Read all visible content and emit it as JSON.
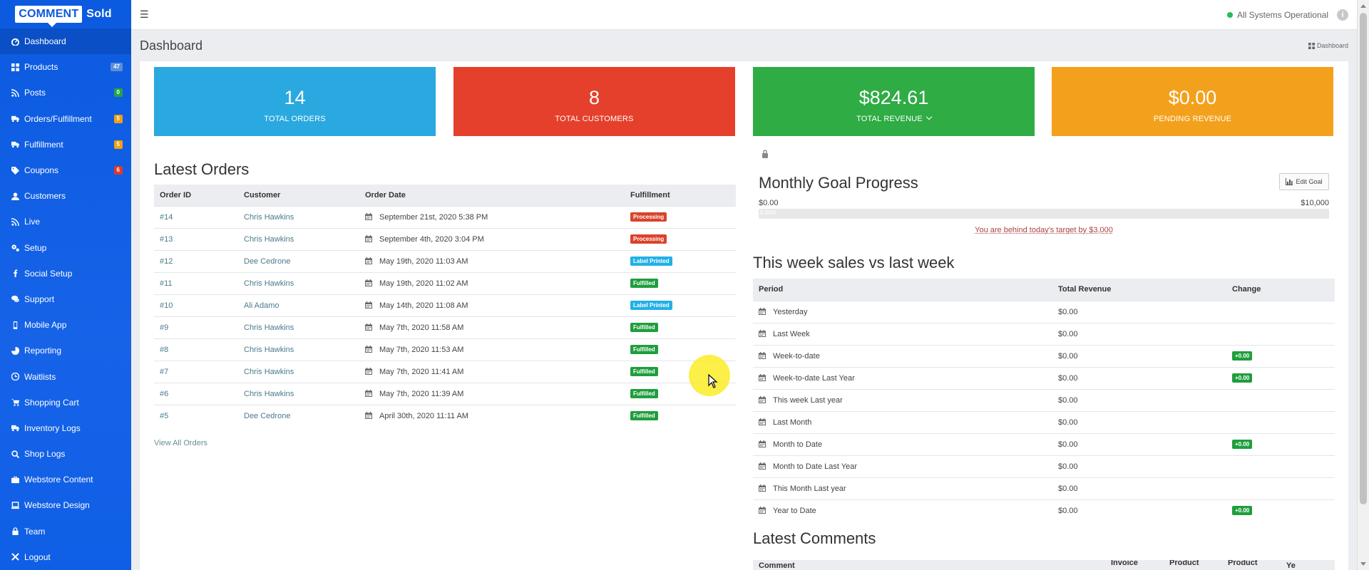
{
  "brand": {
    "logo_part1": "COMMENT",
    "logo_part2": "Sold",
    "primary": "#0b5ae0"
  },
  "sidebar": {
    "items": [
      {
        "label": "Dashboard",
        "icon": "dashboard-icon",
        "badge": null,
        "active": true
      },
      {
        "label": "Products",
        "icon": "grid-icon",
        "badge": "47",
        "badge_color": "#5b8fd9"
      },
      {
        "label": "Posts",
        "icon": "rss-icon",
        "badge": "0",
        "badge_color": "#27a243"
      },
      {
        "label": "Orders/Fulfillment",
        "icon": "truck-icon",
        "badge": "5",
        "badge_color": "#f0a010"
      },
      {
        "label": "Fulfillment",
        "icon": "truck-icon",
        "badge": "5",
        "badge_color": "#f0a010"
      },
      {
        "label": "Coupons",
        "icon": "tag-icon",
        "badge": "6",
        "badge_color": "#e0392b"
      },
      {
        "label": "Customers",
        "icon": "user-icon",
        "badge": null
      },
      {
        "label": "Live",
        "icon": "rss-icon",
        "badge": null
      },
      {
        "label": "Setup",
        "icon": "gears-icon",
        "badge": null
      },
      {
        "label": "Social Setup",
        "icon": "facebook-icon",
        "badge": null
      },
      {
        "label": "Support",
        "icon": "comments-icon",
        "badge": null
      },
      {
        "label": "Mobile App",
        "icon": "mobile-icon",
        "badge": null
      },
      {
        "label": "Reporting",
        "icon": "pie-chart-icon",
        "badge": null
      },
      {
        "label": "Waitlists",
        "icon": "clock-icon",
        "badge": null
      },
      {
        "label": "Shopping Cart",
        "icon": "cart-icon",
        "badge": null
      },
      {
        "label": "Inventory Logs",
        "icon": "truck-icon",
        "badge": null
      },
      {
        "label": "Shop Logs",
        "icon": "search-icon",
        "badge": null
      },
      {
        "label": "Webstore Content",
        "icon": "briefcase-icon",
        "badge": null
      },
      {
        "label": "Webstore Design",
        "icon": "laptop-icon",
        "badge": null
      },
      {
        "label": "Team",
        "icon": "lock-icon",
        "badge": null
      },
      {
        "label": "Logout",
        "icon": "close-icon",
        "badge": null
      }
    ]
  },
  "topbar": {
    "status_text": "All Systems Operational",
    "status_color": "#2eb85c"
  },
  "header": {
    "title": "Dashboard",
    "breadcrumb": "Dashboard"
  },
  "stats": [
    {
      "value": "14",
      "label": "TOTAL ORDERS",
      "color": "#2aa9e0"
    },
    {
      "value": "8",
      "label": "TOTAL CUSTOMERS",
      "color": "#e5402b"
    },
    {
      "value": "$824.61",
      "label": "TOTAL REVENUE",
      "color": "#2fac44"
    },
    {
      "value": "$0.00",
      "label": "PENDING REVENUE",
      "color": "#f3a11c"
    }
  ],
  "latest_orders": {
    "title": "Latest Orders",
    "columns": [
      "Order ID",
      "Customer",
      "Order Date",
      "Fulfillment"
    ],
    "rows": [
      {
        "id": "#14",
        "customer": "Chris Hawkins",
        "date": "September 21st, 2020 5:38 PM",
        "status": "Processing",
        "status_color": "#d9432c"
      },
      {
        "id": "#13",
        "customer": "Chris Hawkins",
        "date": "September 4th, 2020 3:04 PM",
        "status": "Processing",
        "status_color": "#d9432c"
      },
      {
        "id": "#12",
        "customer": "Dee Cedrone",
        "date": "May 19th, 2020 11:03 AM",
        "status": "Label Printed",
        "status_color": "#22b0e6"
      },
      {
        "id": "#11",
        "customer": "Chris Hawkins",
        "date": "May 19th, 2020 11:02 AM",
        "status": "Fulfilled",
        "status_color": "#1f9e3d"
      },
      {
        "id": "#10",
        "customer": "Ali Adamo",
        "date": "May 14th, 2020 11:08 AM",
        "status": "Label Printed",
        "status_color": "#22b0e6"
      },
      {
        "id": "#9",
        "customer": "Chris Hawkins",
        "date": "May 7th, 2020 11:58 AM",
        "status": "Fulfilled",
        "status_color": "#1f9e3d"
      },
      {
        "id": "#8",
        "customer": "Chris Hawkins",
        "date": "May 7th, 2020 11:53 AM",
        "status": "Fulfilled",
        "status_color": "#1f9e3d"
      },
      {
        "id": "#7",
        "customer": "Chris Hawkins",
        "date": "May 7th, 2020 11:41 AM",
        "status": "Fulfilled",
        "status_color": "#1f9e3d"
      },
      {
        "id": "#6",
        "customer": "Chris Hawkins",
        "date": "May 7th, 2020 11:39 AM",
        "status": "Fulfilled",
        "status_color": "#1f9e3d"
      },
      {
        "id": "#5",
        "customer": "Dee Cedrone",
        "date": "April 30th, 2020 11:11 AM",
        "status": "Fulfilled",
        "status_color": "#1f9e3d"
      }
    ],
    "view_all": "View All Orders"
  },
  "goal": {
    "title": "Monthly Goal Progress",
    "edit_label": "Edit Goal",
    "min": "$0.00",
    "max": "$10,000",
    "progress_text": "0.00%",
    "progress_fraction": 0.0,
    "behind_text": "You are behind today's target by $3,000"
  },
  "weekly": {
    "title": "This week sales vs last week",
    "columns": [
      "Period",
      "Total Revenue",
      "Change"
    ],
    "rows": [
      {
        "period": "Yesterday",
        "revenue": "$0.00",
        "change": ""
      },
      {
        "period": "Last Week",
        "revenue": "$0.00",
        "change": ""
      },
      {
        "period": "Week-to-date",
        "revenue": "$0.00",
        "change": "+0.00"
      },
      {
        "period": "Week-to-date Last Year",
        "revenue": "$0.00",
        "change": "+0.00"
      },
      {
        "period": "This week Last year",
        "revenue": "$0.00",
        "change": ""
      },
      {
        "period": "Last Month",
        "revenue": "$0.00",
        "change": ""
      },
      {
        "period": "Month to Date",
        "revenue": "$0.00",
        "change": "+0.00"
      },
      {
        "period": "Month to Date Last Year",
        "revenue": "$0.00",
        "change": ""
      },
      {
        "period": "This Month Last year",
        "revenue": "$0.00",
        "change": ""
      },
      {
        "period": "Year to Date",
        "revenue": "$0.00",
        "change": "+0.00"
      }
    ],
    "change_color": "#1f9e3d"
  },
  "comments": {
    "title": "Latest Comments",
    "columns": [
      "Comment",
      "Invoice",
      "Product",
      "Product",
      "Ye"
    ]
  }
}
